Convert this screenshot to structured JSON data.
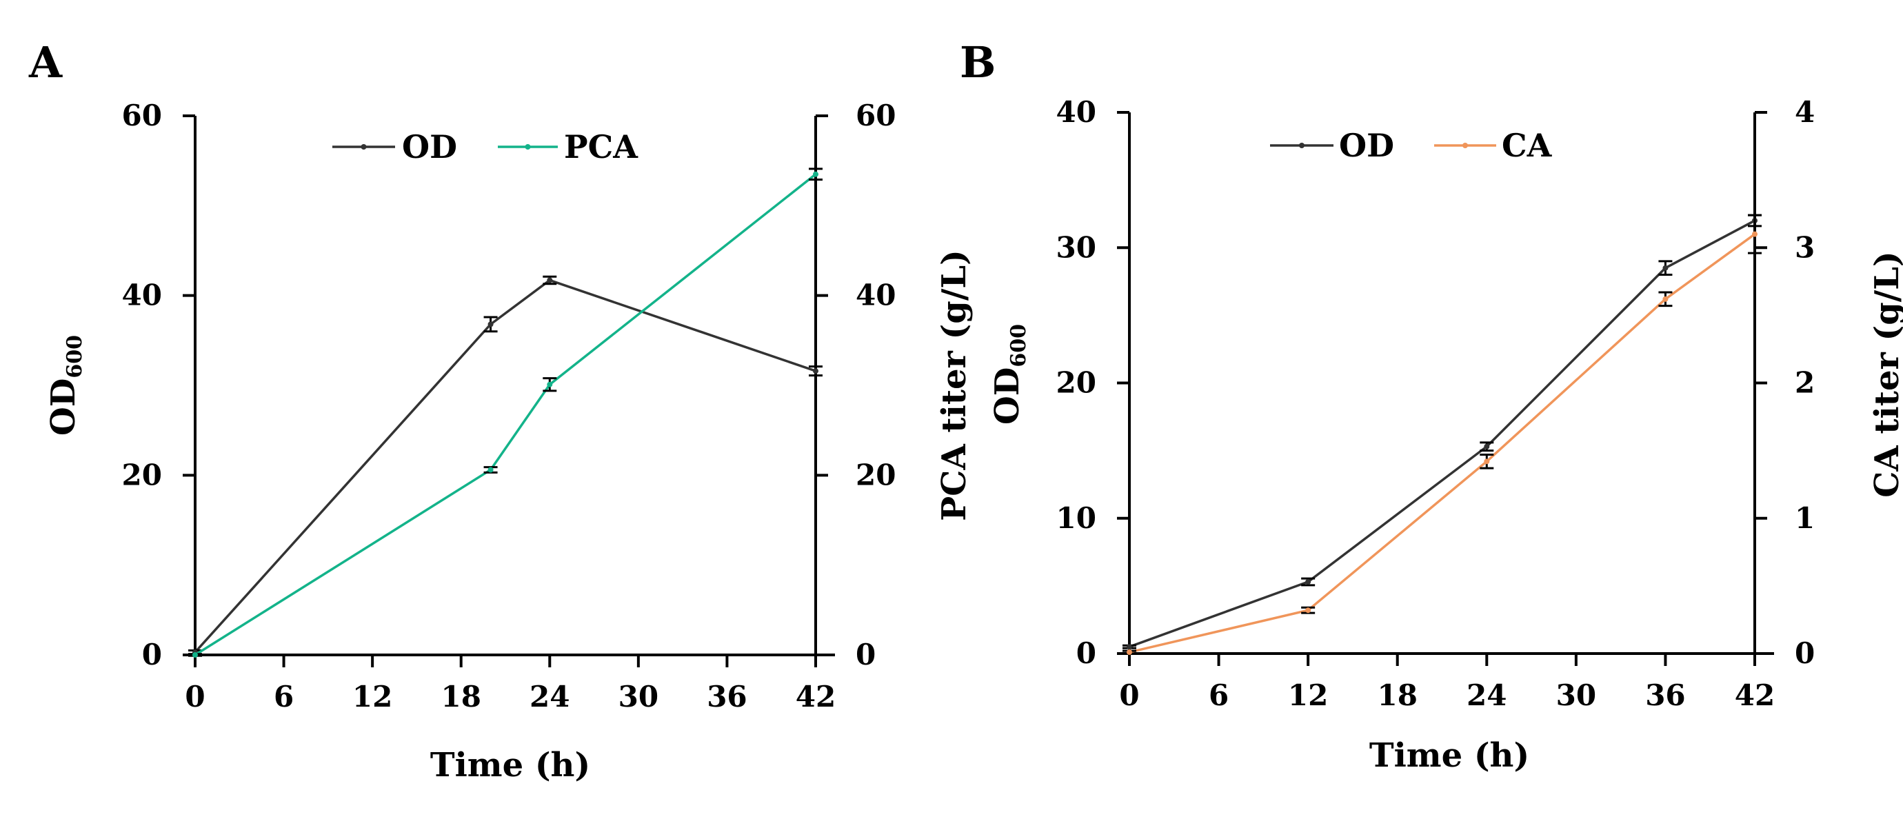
{
  "chart_data": [
    {
      "panel": "A",
      "type": "line",
      "xlabel": "Time (h)",
      "ylabel": "OD",
      "ylabel_sub": "600",
      "y2label": "PCA titer (g/L)",
      "xlim": [
        0,
        42
      ],
      "xticks": [
        "0",
        "6",
        "12",
        "18",
        "24",
        "30",
        "36",
        "42"
      ],
      "ylim": [
        0,
        60
      ],
      "yticks": [
        "0",
        "20",
        "40",
        "60"
      ],
      "y2lim": [
        0,
        60
      ],
      "y2ticks": [
        "0",
        "20",
        "40",
        "60"
      ],
      "series": [
        {
          "name": "OD",
          "axis": "left",
          "color": "#333333",
          "x": [
            0,
            20,
            24,
            42
          ],
          "values": [
            0.3,
            36.8,
            41.7,
            31.6
          ],
          "err": [
            0.2,
            0.8,
            0.4,
            0.5
          ]
        },
        {
          "name": "PCA",
          "axis": "right",
          "color": "#13b38a",
          "x": [
            0,
            20,
            24,
            42
          ],
          "values": [
            0,
            20.6,
            30.1,
            53.5
          ],
          "err": [
            0.1,
            0.3,
            0.7,
            0.6
          ]
        }
      ]
    },
    {
      "panel": "B",
      "type": "line",
      "xlabel": "Time (h)",
      "ylabel": "OD",
      "ylabel_sub": "600",
      "y2label": "CA titer (g/L)",
      "xlim": [
        0,
        42
      ],
      "xticks": [
        "0",
        "6",
        "12",
        "18",
        "24",
        "30",
        "36",
        "42"
      ],
      "ylim": [
        0,
        40
      ],
      "yticks": [
        "0",
        "10",
        "20",
        "30",
        "40"
      ],
      "y2lim": [
        0,
        4
      ],
      "y2ticks": [
        "0",
        "1",
        "2",
        "3",
        "4"
      ],
      "series": [
        {
          "name": "OD",
          "axis": "left",
          "color": "#333333",
          "x": [
            0,
            12,
            24,
            36,
            42
          ],
          "values": [
            0.5,
            5.3,
            15.3,
            28.5,
            32.0
          ],
          "err": [
            0.1,
            0.25,
            0.3,
            0.5,
            0.4
          ]
        },
        {
          "name": "CA",
          "axis": "right",
          "color": "#f0955a",
          "x": [
            0,
            12,
            24,
            36,
            42
          ],
          "values": [
            0.01,
            0.32,
            1.42,
            2.62,
            3.1
          ],
          "err": [
            0.01,
            0.02,
            0.05,
            0.05,
            0.14
          ]
        }
      ]
    }
  ]
}
